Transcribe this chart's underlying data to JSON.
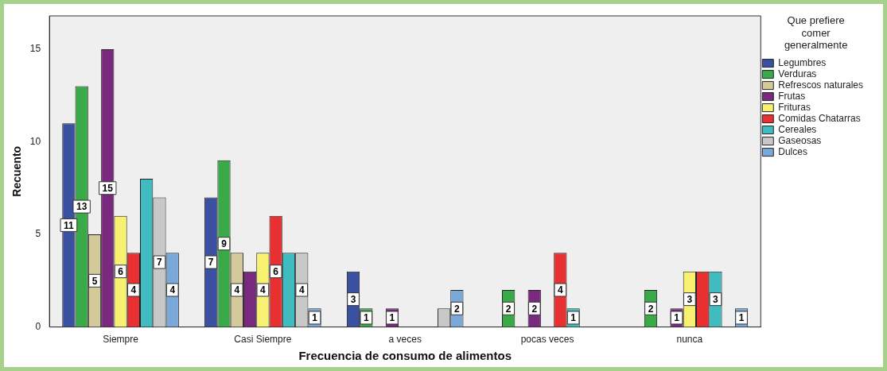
{
  "chart_data": {
    "type": "bar",
    "xlabel": "Frecuencia de consumo de alimentos",
    "ylabel": "Recuento",
    "legend_title": "Que prefiere comer generalmente",
    "legend": "top right",
    "grid": false,
    "categories": [
      "Siempre",
      "Casi Siempre",
      "a veces",
      "pocas veces",
      "nunca"
    ],
    "ylim": [
      0,
      16.8
    ],
    "yticks": [
      0,
      5,
      10,
      15
    ],
    "series": [
      {
        "name": "Legumbres",
        "color": "#3a50a0",
        "values": [
          11,
          7,
          3,
          null,
          null
        ],
        "value_labels": [
          "11",
          "7",
          "3",
          null,
          null
        ]
      },
      {
        "name": "Verduras",
        "color": "#3aaa48",
        "values": [
          13,
          9,
          1,
          2,
          2
        ],
        "value_labels": [
          "13",
          "9",
          "1",
          "2",
          "2"
        ]
      },
      {
        "name": "Refrescos naturales",
        "color": "#d4c99a",
        "values": [
          5,
          4,
          null,
          null,
          null
        ],
        "value_labels": [
          "5",
          "4",
          null,
          null,
          null
        ]
      },
      {
        "name": "Frutas",
        "color": "#7a2a7e",
        "values": [
          15,
          3,
          1,
          2,
          1
        ],
        "value_labels": [
          "15",
          null,
          "1",
          "2",
          "1"
        ]
      },
      {
        "name": "Frituras",
        "color": "#f8f070",
        "values": [
          6,
          4,
          null,
          null,
          3
        ],
        "value_labels": [
          "6",
          "4",
          null,
          null,
          "3"
        ]
      },
      {
        "name": "Comidas Chatarras",
        "color": "#e83030",
        "values": [
          4,
          6,
          null,
          4,
          3
        ],
        "value_labels": [
          "4",
          "6",
          null,
          "4",
          null
        ]
      },
      {
        "name": "Cereales",
        "color": "#40bcc0",
        "values": [
          8,
          4,
          null,
          1,
          3
        ],
        "value_labels": [
          null,
          null,
          null,
          "1",
          "3"
        ]
      },
      {
        "name": "Gaseosas",
        "color": "#c8c8c8",
        "values": [
          7,
          4,
          1,
          null,
          null
        ],
        "value_labels": [
          "7",
          "4",
          null,
          null,
          null
        ]
      },
      {
        "name": "Dulces",
        "color": "#7aa8d8",
        "values": [
          4,
          1,
          2,
          null,
          1
        ],
        "value_labels": [
          "4",
          "1",
          "2",
          null,
          "1"
        ]
      }
    ]
  }
}
